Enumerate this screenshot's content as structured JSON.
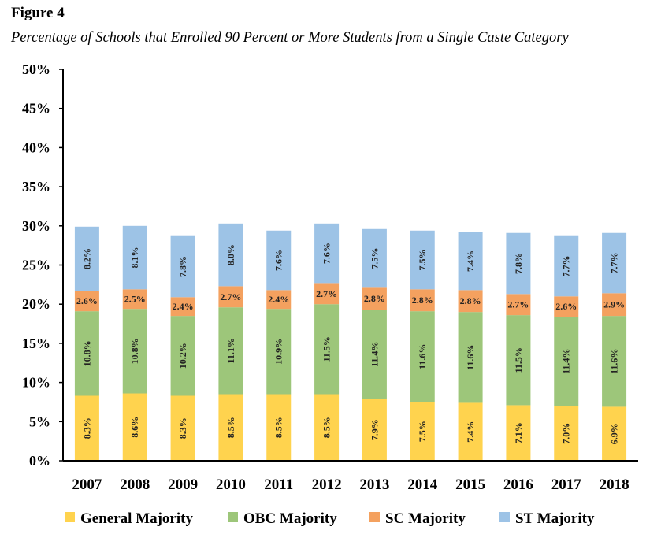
{
  "figure": {
    "label": "Figure 4",
    "caption": "Percentage of Schools that Enrolled 90 Percent or More Students from a Single Caste Category"
  },
  "chart_data": {
    "type": "bar",
    "stacked": true,
    "title": "Percentage of Schools that Enrolled 90 Percent or More Students from a Single Caste Category",
    "xlabel": "",
    "ylabel": "",
    "ylim": [
      0,
      50
    ],
    "yticks": [
      "0%",
      "5%",
      "10%",
      "15%",
      "20%",
      "25%",
      "30%",
      "35%",
      "40%",
      "45%",
      "50%"
    ],
    "categories": [
      "2007",
      "2008",
      "2009",
      "2010",
      "2011",
      "2012",
      "2013",
      "2014",
      "2015",
      "2016",
      "2017",
      "2018"
    ],
    "series": [
      {
        "name": "General Majority",
        "color": "#FFD34E",
        "values": [
          8.3,
          8.6,
          8.3,
          8.5,
          8.5,
          8.5,
          7.9,
          7.5,
          7.4,
          7.1,
          7.0,
          6.9
        ],
        "labels": [
          "8.3%",
          "8.6%",
          "8.3%",
          "8.5%",
          "8.5%",
          "8.5%",
          "7.9%",
          "7.5%",
          "7.4%",
          "7.1%",
          "7.0%",
          "6.9%"
        ]
      },
      {
        "name": "OBC Majority",
        "color": "#9DC67A",
        "values": [
          10.8,
          10.8,
          10.2,
          11.1,
          10.9,
          11.5,
          11.4,
          11.6,
          11.6,
          11.5,
          11.4,
          11.6
        ],
        "labels": [
          "10.8%",
          "10.8%",
          "10.2%",
          "11.1%",
          "10.9%",
          "11.5%",
          "11.4%",
          "11.6%",
          "11.6%",
          "11.5%",
          "11.4%",
          "11.6%"
        ]
      },
      {
        "name": "SC Majority",
        "color": "#F4A15F",
        "values": [
          2.6,
          2.5,
          2.4,
          2.7,
          2.4,
          2.7,
          2.8,
          2.8,
          2.8,
          2.7,
          2.6,
          2.9
        ],
        "labels": [
          "2.6%",
          "2.5%",
          "2.4%",
          "2.7%",
          "2.4%",
          "2.7%",
          "2.8%",
          "2.8%",
          "2.8%",
          "2.7%",
          "2.6%",
          "2.9%"
        ]
      },
      {
        "name": "ST Majority",
        "color": "#9DC3E6",
        "values": [
          8.2,
          8.1,
          7.8,
          8.0,
          7.6,
          7.6,
          7.5,
          7.5,
          7.4,
          7.8,
          7.7,
          7.7
        ],
        "labels": [
          "8.2%",
          "8.1%",
          "7.8%",
          "8.0%",
          "7.6%",
          "7.6%",
          "7.5%",
          "7.5%",
          "7.4%",
          "7.8%",
          "7.7%",
          "7.7%"
        ]
      }
    ],
    "legend": "bottom",
    "grid": false
  }
}
